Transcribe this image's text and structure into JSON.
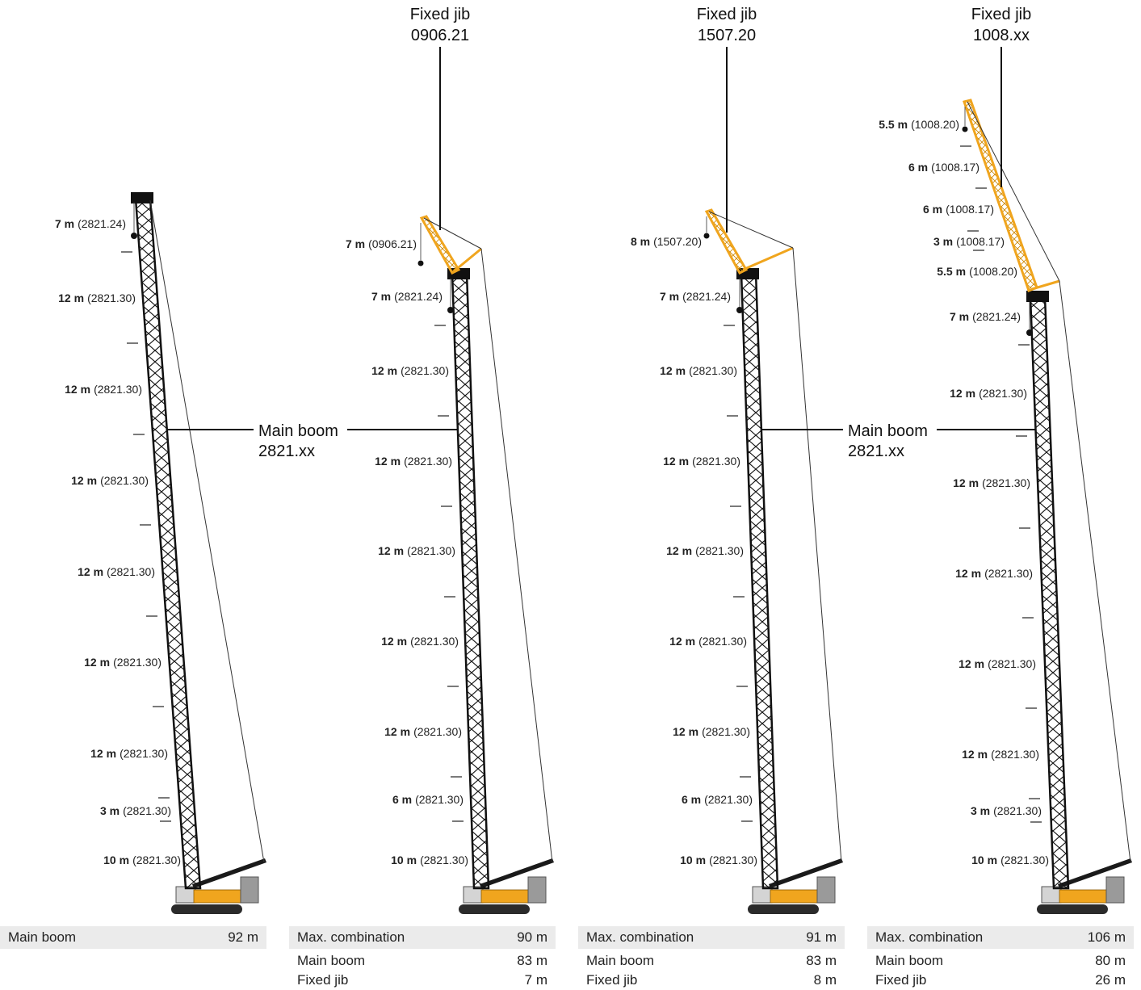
{
  "colors": {
    "boom": "#1a1a1a",
    "jib": "#f0a51e",
    "base": "#ebebeb",
    "rope": "#333333"
  },
  "cranes": [
    {
      "segments": [
        {
          "len": "7 m",
          "code": "(2821.24)"
        },
        {
          "len": "12 m",
          "code": "(2821.30)"
        },
        {
          "len": "12 m",
          "code": "(2821.30)"
        },
        {
          "len": "12 m",
          "code": "(2821.30)"
        },
        {
          "len": "12 m",
          "code": "(2821.30)"
        },
        {
          "len": "12 m",
          "code": "(2821.30)"
        },
        {
          "len": "12 m",
          "code": "(2821.30)"
        },
        {
          "len": "3 m",
          "code": "(2821.30)"
        },
        {
          "len": "10 m",
          "code": "(2821.30)"
        }
      ],
      "table": [
        {
          "label": "Main boom",
          "value": "92 m"
        }
      ]
    },
    {
      "callout": {
        "line1": "Fixed jib",
        "line2": "0906.21"
      },
      "segments": [
        {
          "len": "7 m",
          "code": "(0906.21)"
        },
        {
          "len": "7 m",
          "code": "(2821.24)"
        },
        {
          "len": "12 m",
          "code": "(2821.30)"
        },
        {
          "len": "12 m",
          "code": "(2821.30)"
        },
        {
          "len": "12 m",
          "code": "(2821.30)"
        },
        {
          "len": "12 m",
          "code": "(2821.30)"
        },
        {
          "len": "12 m",
          "code": "(2821.30)"
        },
        {
          "len": "6 m",
          "code": "(2821.30)"
        },
        {
          "len": "10 m",
          "code": "(2821.30)"
        }
      ],
      "table": [
        {
          "label": "Max. combination",
          "value": "90 m"
        },
        {
          "label": "Main boom",
          "value": "83 m"
        },
        {
          "label": "Fixed jib",
          "value": "7 m"
        }
      ]
    },
    {
      "callout": {
        "line1": "Fixed jib",
        "line2": "1507.20"
      },
      "segments": [
        {
          "len": "8 m",
          "code": "(1507.20)"
        },
        {
          "len": "7 m",
          "code": "(2821.24)"
        },
        {
          "len": "12 m",
          "code": "(2821.30)"
        },
        {
          "len": "12 m",
          "code": "(2821.30)"
        },
        {
          "len": "12 m",
          "code": "(2821.30)"
        },
        {
          "len": "12 m",
          "code": "(2821.30)"
        },
        {
          "len": "12 m",
          "code": "(2821.30)"
        },
        {
          "len": "6 m",
          "code": "(2821.30)"
        },
        {
          "len": "10 m",
          "code": "(2821.30)"
        }
      ],
      "table": [
        {
          "label": "Max. combination",
          "value": "91 m"
        },
        {
          "label": "Main boom",
          "value": "83 m"
        },
        {
          "label": "Fixed jib",
          "value": "8 m"
        }
      ]
    },
    {
      "callout": {
        "line1": "Fixed jib",
        "line2": "1008.xx"
      },
      "segments": [
        {
          "len": "5.5 m",
          "code": "(1008.20)"
        },
        {
          "len": "6 m",
          "code": "(1008.17)"
        },
        {
          "len": "6 m",
          "code": "(1008.17)"
        },
        {
          "len": "3 m",
          "code": "(1008.17)"
        },
        {
          "len": "5.5 m",
          "code": "(1008.20)"
        },
        {
          "len": "7 m",
          "code": "(2821.24)"
        },
        {
          "len": "12 m",
          "code": "(2821.30)"
        },
        {
          "len": "12 m",
          "code": "(2821.30)"
        },
        {
          "len": "12 m",
          "code": "(2821.30)"
        },
        {
          "len": "12 m",
          "code": "(2821.30)"
        },
        {
          "len": "12 m",
          "code": "(2821.30)"
        },
        {
          "len": "3 m",
          "code": "(2821.30)"
        },
        {
          "len": "10 m",
          "code": "(2821.30)"
        }
      ],
      "table": [
        {
          "label": "Max. combination",
          "value": "106 m"
        },
        {
          "label": "Main boom",
          "value": "80 m"
        },
        {
          "label": "Fixed jib",
          "value": "26 m"
        }
      ]
    }
  ],
  "main_boom_callouts": [
    {
      "line1": "Main boom",
      "line2": "2821.xx"
    },
    {
      "line1": "Main boom",
      "line2": "2821.xx"
    }
  ]
}
